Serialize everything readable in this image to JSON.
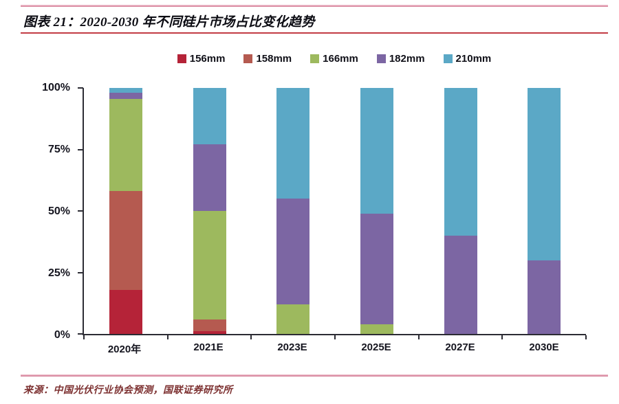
{
  "header": {
    "title": "图表 21：2020-2030 年不同硅片市场占比变化趋势"
  },
  "footer": {
    "source": "来源：中国光伏行业协会预测，国联证券研究所"
  },
  "chart_data": {
    "type": "bar",
    "stacked": true,
    "title": "2020-2030 年不同硅片市场占比变化趋势",
    "categories": [
      "2020年",
      "2021E",
      "2023E",
      "2025E",
      "2027E",
      "2030E"
    ],
    "series": [
      {
        "name": "156mm",
        "color": "#B52338",
        "values": [
          18,
          1,
          0,
          0,
          0,
          0
        ]
      },
      {
        "name": "158mm",
        "color": "#B55A50",
        "values": [
          40,
          5,
          0,
          0,
          0,
          0
        ]
      },
      {
        "name": "166mm",
        "color": "#9DB95E",
        "values": [
          37.5,
          44,
          12,
          4,
          0,
          0
        ]
      },
      {
        "name": "182mm",
        "color": "#7C66A3",
        "values": [
          2.5,
          27,
          43,
          45,
          40,
          30
        ]
      },
      {
        "name": "210mm",
        "color": "#5BA8C6",
        "values": [
          2,
          23,
          45,
          51,
          60,
          70
        ]
      }
    ],
    "xlabel": "",
    "ylabel": "",
    "ylim": [
      0,
      100
    ],
    "yticks": [
      0,
      25,
      50,
      75,
      100
    ],
    "ytick_labels": [
      "0%",
      "25%",
      "50%",
      "75%",
      "100%"
    ],
    "legend_position": "top",
    "grid": false,
    "axis_color": "#2b2b33"
  }
}
